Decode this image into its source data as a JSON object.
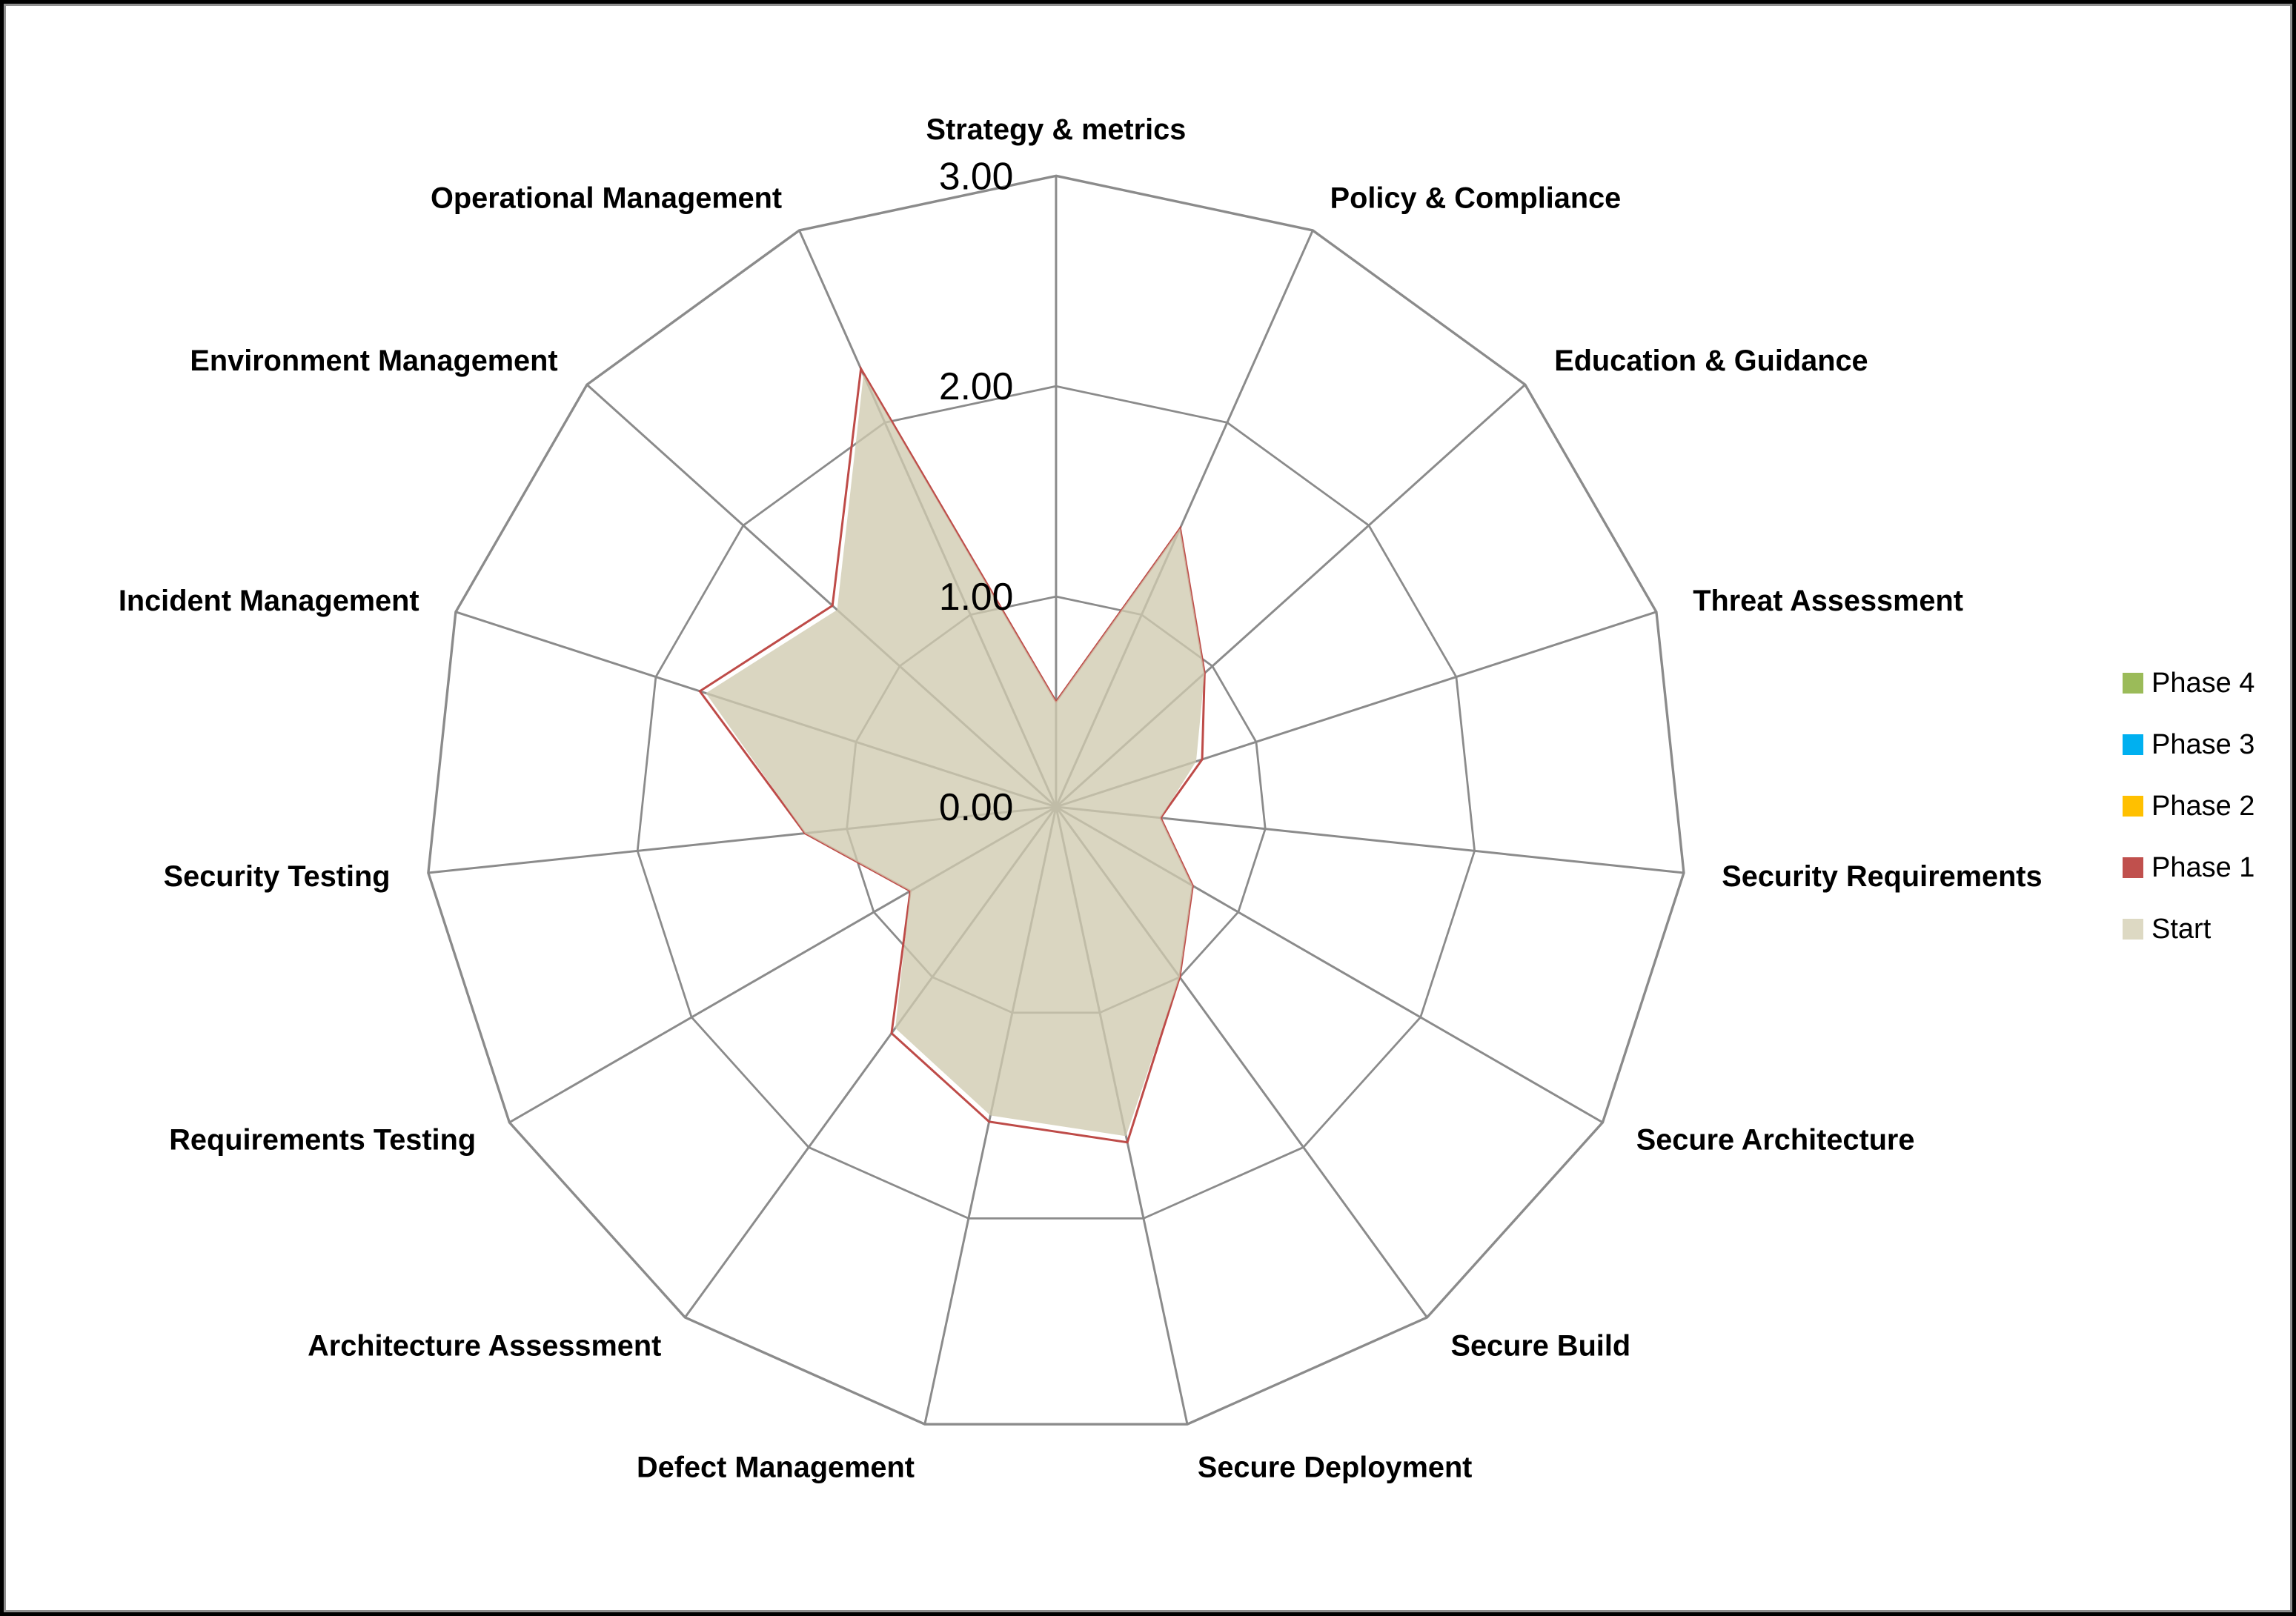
{
  "page": {
    "background": "#ffffff",
    "outer_frame_color": "#000000",
    "inner_border_color": "#8f8f8f"
  },
  "chart_data": {
    "type": "radar",
    "title": "",
    "categories": [
      "Strategy & metrics",
      "Policy & Compliance",
      "Education & Guidance",
      "Threat Assessment",
      "Security Requirements",
      "Secure Architecture",
      "Secure Build",
      "Secure Deployment",
      "Defect Management",
      "Architecture Assessment",
      "Requirements Testing",
      "Security Testing",
      "Incident Management",
      "Environment Management",
      "Operational Management"
    ],
    "series": [
      {
        "name": "Phase 1",
        "values": [
          0.5,
          1.45,
          0.95,
          0.73,
          0.5,
          0.75,
          1.0,
          1.63,
          1.53,
          1.33,
          0.8,
          1.2,
          1.78,
          1.43,
          2.28
        ],
        "style": "line",
        "stroke": "#BE4B48",
        "fill": "none"
      },
      {
        "name": "Start",
        "values": [
          0.5,
          1.45,
          0.95,
          0.7,
          0.5,
          0.75,
          1.0,
          1.6,
          1.5,
          1.3,
          0.8,
          1.2,
          1.75,
          1.4,
          2.25
        ],
        "style": "area",
        "fill": "#CFCAAF",
        "fill_opacity": 0.78,
        "stroke": "none"
      }
    ],
    "radial_axis": {
      "min": 0,
      "max": 3,
      "step": 1,
      "tick_labels": [
        "0.00",
        "1.00",
        "2.00",
        "3.00"
      ]
    },
    "grid": {
      "rings": 3,
      "spokes": 15,
      "color": "#8B8B8B",
      "show": true
    },
    "legend": {
      "position": "right",
      "items": [
        {
          "label": "Phase 4",
          "color": "#9BBB59"
        },
        {
          "label": "Phase 3",
          "color": "#00B0F0"
        },
        {
          "label": "Phase 2",
          "color": "#FFC000"
        },
        {
          "label": "Phase 1",
          "color": "#C0504D"
        },
        {
          "label": "Start",
          "color": "#DDD9C3"
        }
      ]
    }
  }
}
